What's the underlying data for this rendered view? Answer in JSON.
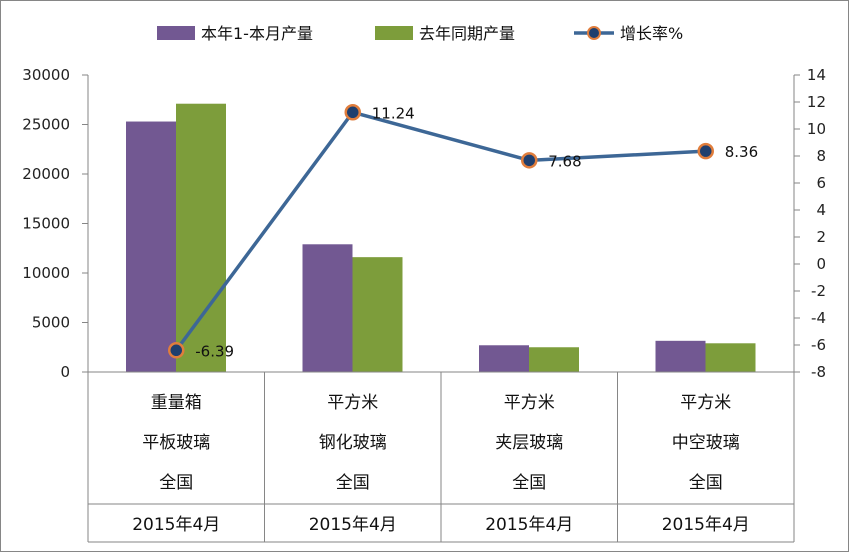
{
  "chart_data": {
    "type": "bar",
    "legend_position": "top",
    "grid": false,
    "colors": {
      "current": "#725892",
      "previous": "#7d9d3b",
      "growth_line": "#3d6796",
      "growth_marker_fill": "#1f3f6e",
      "growth_marker_edge": "#e07d3c"
    },
    "categories": [
      [
        "重量箱",
        "平板玻璃",
        "全国",
        "2015年4月"
      ],
      [
        "平方米",
        "钢化玻璃",
        "全国",
        "2015年4月"
      ],
      [
        "平方米",
        "夹层玻璃",
        "全国",
        "2015年4月"
      ],
      [
        "平方米",
        "中空玻璃",
        "全国",
        "2015年4月"
      ]
    ],
    "series": [
      {
        "name": "本年1-本月产量",
        "type": "bar",
        "axis": "left",
        "values": [
          25300,
          12900,
          2700,
          3150
        ]
      },
      {
        "name": "去年同期产量",
        "type": "bar",
        "axis": "left",
        "values": [
          27100,
          11600,
          2500,
          2900
        ]
      },
      {
        "name": "增长率%",
        "type": "line",
        "axis": "right",
        "values": [
          -6.39,
          11.24,
          7.68,
          8.36
        ],
        "labels": [
          "-6.39",
          "11.24",
          "7.68",
          "8.36"
        ]
      }
    ],
    "y_left": {
      "min": 0,
      "max": 30000,
      "ticks": [
        "0",
        "5000",
        "10000",
        "15000",
        "20000",
        "25000",
        "30000"
      ]
    },
    "y_right": {
      "min": -8,
      "max": 14,
      "ticks": [
        "-8",
        "-6",
        "-4",
        "-2",
        "0",
        "2",
        "4",
        "6",
        "8",
        "10",
        "12",
        "14"
      ]
    }
  }
}
